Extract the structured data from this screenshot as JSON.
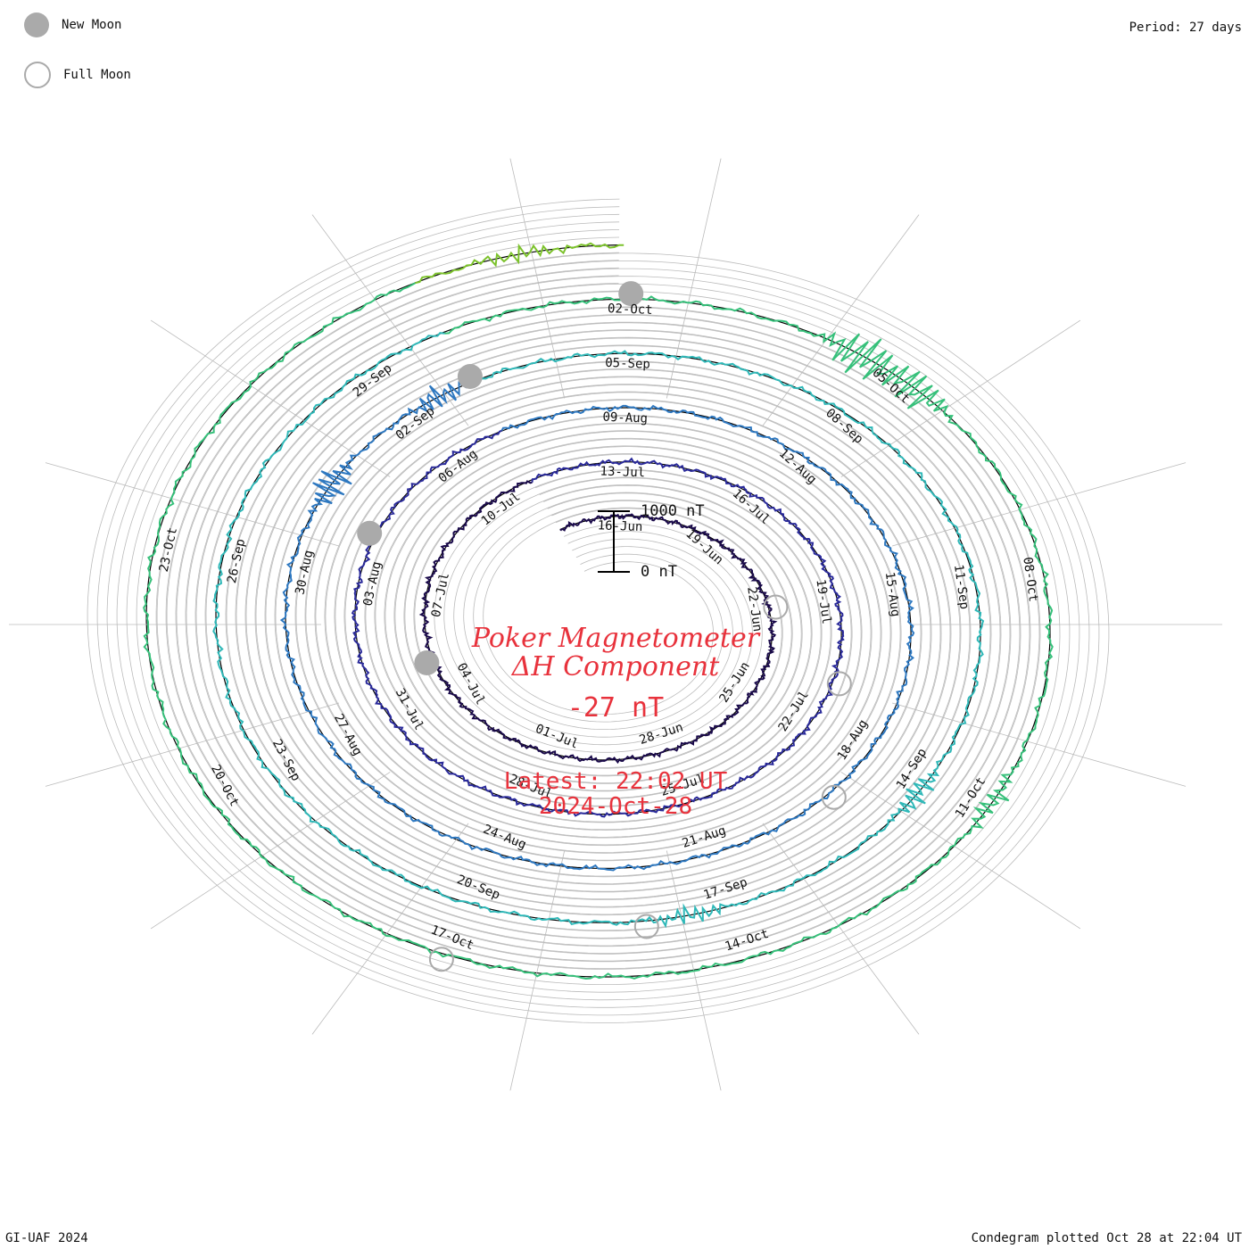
{
  "legend": {
    "new_moon": "New Moon",
    "full_moon": "Full Moon"
  },
  "header": {
    "period": "Period: 27 days"
  },
  "footer": {
    "credit": "GI-UAF 2024",
    "plotted": "Condegram plotted Oct 28 at 22:04 UT"
  },
  "title": {
    "line1": "Poker Magnetometer",
    "line2": "ΔH Component",
    "value": "-27 nT",
    "latest_label": "Latest: 22:02 UT",
    "latest_date": "2024-Oct-28"
  },
  "scale_bar": {
    "top_label": "1000 nT",
    "bottom_label": "0 nT"
  },
  "colors": {
    "title_red": "#e8323c",
    "grid": "#bbbbbb",
    "moon": "#aaaaaa"
  },
  "chart_data": {
    "type": "line",
    "period_days": 27,
    "start": "2024-06-14",
    "end": "2024-10-28",
    "scale_nT_per_ring": 100,
    "date_labels": [
      "16-Jun",
      "19-Jun",
      "22-Jun",
      "25-Jun",
      "28-Jun",
      "01-Jul",
      "04-Jul",
      "07-Jul",
      "10-Jul",
      "13-Jul",
      "16-Jul",
      "19-Jul",
      "22-Jul",
      "25-Jul",
      "28-Jul",
      "31-Jul",
      "03-Aug",
      "06-Aug",
      "09-Aug",
      "12-Aug",
      "15-Aug",
      "18-Aug",
      "21-Aug",
      "24-Aug",
      "27-Aug",
      "30-Aug",
      "02-Sep",
      "05-Sep",
      "08-Sep",
      "11-Sep",
      "14-Sep",
      "17-Sep",
      "20-Sep",
      "23-Sep",
      "26-Sep",
      "29-Sep",
      "02-Oct",
      "05-Oct",
      "08-Oct",
      "11-Oct",
      "14-Oct",
      "17-Oct",
      "20-Oct",
      "23-Oct"
    ],
    "series_colors": [
      "#1a0a4a",
      "#2a2a9a",
      "#2e78c0",
      "#2fb8b8",
      "#36c07a",
      "#7cc22c",
      "#b4b41e",
      "#c08a1a",
      "#c0561a",
      "#b81414"
    ],
    "new_moons": [
      "2024-07-05",
      "2024-08-04",
      "2024-09-03",
      "2024-10-02"
    ],
    "full_moons": [
      "2024-06-22",
      "2024-07-21",
      "2024-08-19",
      "2024-09-18",
      "2024-10-17"
    ]
  }
}
